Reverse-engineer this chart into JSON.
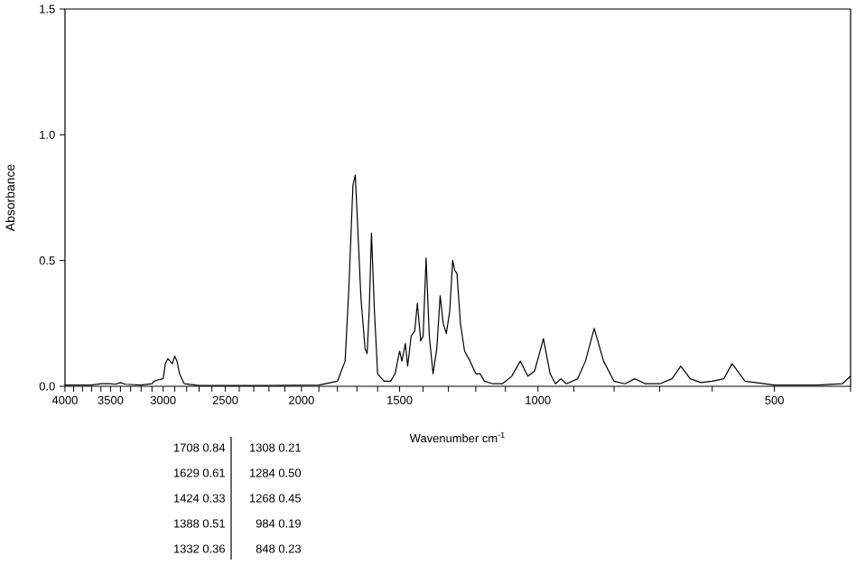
{
  "chart_data": {
    "type": "line",
    "xlabel": "Wavenumber cm$^{-1}$",
    "ylabel": "Absorbance",
    "log": "x",
    "xlim": [
      4000,
      400
    ],
    "ylim": [
      0,
      1.5
    ],
    "xticks": [
      4000,
      {
        "value": 3900,
        "label": null
      },
      {
        "value": 3800,
        "label": null
      },
      {
        "value": 3700,
        "label": null
      },
      {
        "value": 3600,
        "label": null
      },
      3500,
      {
        "value": 3400,
        "label": null
      },
      {
        "value": 3300,
        "label": null
      },
      {
        "value": 3200,
        "label": null
      },
      {
        "value": 3100,
        "label": null
      },
      3000,
      {
        "value": 2900,
        "label": null
      },
      {
        "value": 2800,
        "label": null
      },
      {
        "value": 2700,
        "label": null
      },
      {
        "value": 2600,
        "label": null
      },
      2500,
      {
        "value": 2400,
        "label": null
      },
      {
        "value": 2300,
        "label": null
      },
      {
        "value": 2200,
        "label": null
      },
      {
        "value": 2100,
        "label": null
      },
      2000,
      {
        "value": 1900,
        "label": null
      },
      {
        "value": 1800,
        "label": null
      },
      {
        "value": 1700,
        "label": null
      },
      {
        "value": 1600,
        "label": null
      },
      1500,
      {
        "value": 1400,
        "label": null
      },
      {
        "value": 1300,
        "label": null
      },
      {
        "value": 1200,
        "label": null
      },
      {
        "value": 1100,
        "label": null
      },
      1000,
      {
        "value": 900,
        "label": null
      },
      {
        "value": 800,
        "label": null
      },
      {
        "value": 700,
        "label": null
      },
      {
        "value": 600,
        "label": null
      },
      500,
      {
        "value": 400,
        "label": null
      }
    ],
    "yticks": [
      {
        "value": 0,
        "label": "0.0"
      },
      {
        "value": 0.5,
        "label": "0.5"
      },
      {
        "value": 1.0,
        "label": "1.0"
      },
      {
        "value": 1.5,
        "label": "1.5"
      }
    ],
    "marker": "none",
    "line_style": "solid",
    "annotations": [
      "1708 0.84",
      "1308 0.21",
      "1629 0.61",
      "1284 0.50",
      "1424 0.33",
      "1268 0.45",
      "1388 0.51",
      "984 0.19",
      "1332 0.36",
      "848 0.23"
    ],
    "series": [
      {
        "color": "#000000",
        "x": [
          4000,
          3700,
          3600,
          3500,
          3450,
          3400,
          3350,
          3200,
          3100,
          3080,
          3050,
          3000,
          2980,
          2960,
          2940,
          2920,
          2900,
          2880,
          2860,
          2820,
          2700,
          2200,
          1900,
          1800,
          1760,
          1740,
          1720,
          1708,
          1700,
          1680,
          1660,
          1650,
          1640,
          1629,
          1615,
          1600,
          1570,
          1540,
          1520,
          1500,
          1490,
          1475,
          1465,
          1450,
          1435,
          1424,
          1410,
          1400,
          1388,
          1375,
          1360,
          1345,
          1332,
          1320,
          1308,
          1295,
          1284,
          1276,
          1268,
          1255,
          1240,
          1220,
          1200,
          1185,
          1170,
          1140,
          1110,
          1080,
          1053,
          1030,
          1010,
          984,
          965,
          950,
          935,
          920,
          890,
          870,
          848,
          825,
          800,
          775,
          753,
          730,
          700,
          675,
          658,
          640,
          620,
          600,
          580,
          566,
          545,
          500,
          440,
          410,
          400
        ],
        "values": [
          0.005,
          0.005,
          0.01,
          0.01,
          0.008,
          0.015,
          0.008,
          0.005,
          0.01,
          0.02,
          0.025,
          0.03,
          0.09,
          0.11,
          0.1,
          0.09,
          0.12,
          0.1,
          0.05,
          0.01,
          0.003,
          0.003,
          0.005,
          0.02,
          0.1,
          0.4,
          0.8,
          0.84,
          0.7,
          0.35,
          0.15,
          0.13,
          0.3,
          0.61,
          0.3,
          0.05,
          0.02,
          0.02,
          0.05,
          0.14,
          0.1,
          0.17,
          0.08,
          0.2,
          0.22,
          0.33,
          0.18,
          0.2,
          0.51,
          0.2,
          0.05,
          0.15,
          0.36,
          0.25,
          0.21,
          0.3,
          0.5,
          0.46,
          0.45,
          0.25,
          0.14,
          0.1,
          0.05,
          0.05,
          0.02,
          0.01,
          0.01,
          0.04,
          0.1,
          0.04,
          0.06,
          0.19,
          0.05,
          0.01,
          0.03,
          0.01,
          0.03,
          0.1,
          0.23,
          0.1,
          0.02,
          0.01,
          0.03,
          0.01,
          0.01,
          0.03,
          0.08,
          0.03,
          0.015,
          0.02,
          0.03,
          0.09,
          0.02,
          0.005,
          0.005,
          0.01,
          0.04
        ]
      }
    ]
  }
}
